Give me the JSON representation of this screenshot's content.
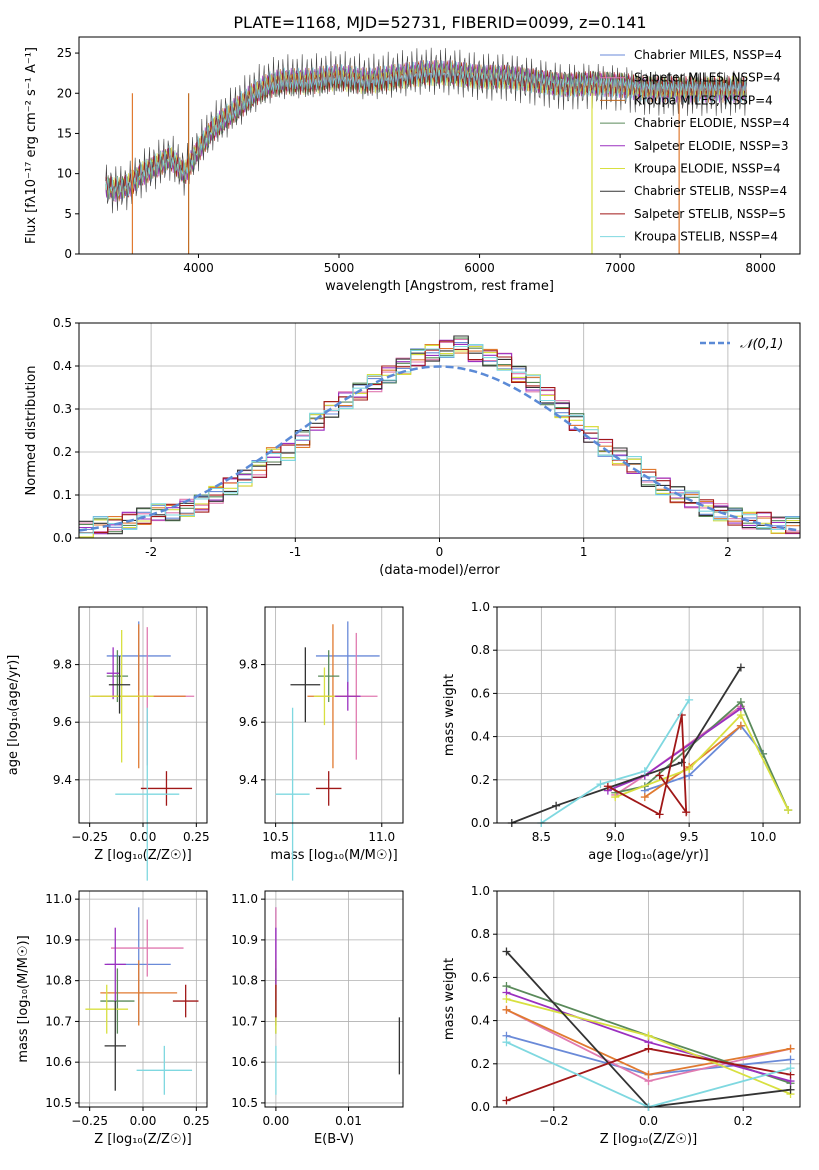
{
  "title": "PLATE=1168, MJD=52731, FIBERID=0099, z=0.141",
  "colors": [
    "#6a5acd",
    "#4a4a4a",
    "#e0902a",
    "#5a8a5a",
    "#9b30c0",
    "#e2e23a",
    "#333333",
    "#a01818",
    "#7fd8e0"
  ],
  "legend_series": [
    {
      "label": "Chabrier MILES, N_SSP=4",
      "color": "#6a8ad8"
    },
    {
      "label": "Salpeter MILES, N_SSP=4",
      "color": "#e07ab0"
    },
    {
      "label": "Kroupa MILES, N_SSP=4",
      "color": "#c06a20"
    },
    {
      "label": "Chabrier ELODIE, N_SSP=4",
      "color": "#5a8a5a"
    },
    {
      "label": "Salpeter ELODIE, N_SSP=3",
      "color": "#9b30c0"
    },
    {
      "label": "Kroupa ELODIE, N_SSP=4",
      "color": "#d8e040"
    },
    {
      "label": "Chabrier STELIB, N_SSP=4",
      "color": "#333333"
    },
    {
      "label": "Salpeter STELIB, N_SSP=5",
      "color": "#a01818"
    },
    {
      "label": "Kroupa STELIB, N_SSP=4",
      "color": "#7fd8e0"
    }
  ],
  "chart_data": [
    {
      "panel": "spectrum",
      "type": "line",
      "xlabel": "wavelength [Angstrom, rest frame]",
      "ylabel": "Flux [fλ10⁻¹⁷ erg cm⁻² s⁻¹ A⁻¹]",
      "xlim": [
        3150,
        8280
      ],
      "ylim": [
        0,
        27
      ],
      "xticks": [
        4000,
        5000,
        6000,
        7000,
        8000
      ],
      "yticks": [
        0,
        5,
        10,
        15,
        20,
        25
      ],
      "x": [
        3340,
        3400,
        3500,
        3600,
        3700,
        3800,
        3900,
        4000,
        4100,
        4200,
        4300,
        4400,
        4500,
        4600,
        4700,
        4800,
        4900,
        5000,
        5200,
        5400,
        5600,
        5800,
        6000,
        6200,
        6400,
        6600,
        6800,
        7000,
        7200,
        7400,
        7600,
        7800,
        7900
      ],
      "y": [
        8.5,
        8.0,
        8.5,
        10.0,
        11.0,
        12.0,
        10.0,
        13.0,
        15.5,
        17.0,
        18.5,
        20.0,
        21.0,
        21.5,
        21.5,
        21.5,
        21.8,
        22.0,
        21.5,
        22.0,
        22.5,
        22.5,
        22.0,
        22.0,
        21.5,
        21.0,
        21.2,
        21.0,
        20.5,
        20.5,
        20.5,
        20.5,
        20.5
      ]
    },
    {
      "panel": "residuals",
      "type": "line",
      "xlabel": "(data-model)/error",
      "ylabel": "Normed distribution",
      "xlim": [
        -2.5,
        2.5
      ],
      "ylim": [
        0,
        0.5
      ],
      "xticks": [
        -2,
        -1,
        0,
        1,
        2
      ],
      "yticks": [
        0.0,
        0.1,
        0.2,
        0.3,
        0.4,
        0.5
      ],
      "legend": "𝒩(0,1)",
      "bins_x": [
        -2.45,
        -2.35,
        -2.25,
        -2.15,
        -2.05,
        -1.95,
        -1.85,
        -1.75,
        -1.65,
        -1.55,
        -1.45,
        -1.35,
        -1.25,
        -1.15,
        -1.05,
        -0.95,
        -0.85,
        -0.75,
        -0.65,
        -0.55,
        -0.45,
        -0.35,
        -0.25,
        -0.15,
        -0.05,
        0.05,
        0.15,
        0.25,
        0.35,
        0.45,
        0.55,
        0.65,
        0.75,
        0.85,
        0.95,
        1.05,
        1.15,
        1.25,
        1.35,
        1.45,
        1.55,
        1.65,
        1.75,
        1.85,
        1.95,
        2.05,
        2.15,
        2.25,
        2.35,
        2.45
      ],
      "hist": [
        0.02,
        0.03,
        0.03,
        0.04,
        0.05,
        0.06,
        0.06,
        0.07,
        0.08,
        0.1,
        0.12,
        0.14,
        0.16,
        0.19,
        0.2,
        0.23,
        0.27,
        0.3,
        0.32,
        0.34,
        0.36,
        0.38,
        0.4,
        0.42,
        0.43,
        0.44,
        0.45,
        0.43,
        0.42,
        0.41,
        0.38,
        0.36,
        0.33,
        0.3,
        0.27,
        0.24,
        0.21,
        0.19,
        0.17,
        0.14,
        0.12,
        0.1,
        0.09,
        0.07,
        0.06,
        0.05,
        0.04,
        0.04,
        0.03,
        0.03
      ]
    },
    {
      "panel": "age_vs_Z",
      "type": "scatter",
      "xlabel": "Z [log₁₀(Z/Z☉)]",
      "ylabel": "age  [log₁₀(age/yr)]",
      "xlim": [
        -0.3,
        0.3
      ],
      "ylim": [
        9.25,
        10.0
      ],
      "xticks": [
        -0.25,
        0.0,
        0.25
      ],
      "yticks": [
        9.4,
        9.6,
        9.8
      ],
      "points": [
        {
          "x": -0.02,
          "y": 9.83,
          "xerr": 0.15,
          "yerr": 0.12
        },
        {
          "x": 0.02,
          "y": 9.69,
          "xerr": 0.22,
          "yerr": 0.24
        },
        {
          "x": -0.02,
          "y": 9.69,
          "xerr": 0.22,
          "yerr": 0.25
        },
        {
          "x": -0.12,
          "y": 9.76,
          "xerr": 0.05,
          "yerr": 0.09
        },
        {
          "x": -0.14,
          "y": 9.77,
          "xerr": 0.03,
          "yerr": 0.09
        },
        {
          "x": -0.1,
          "y": 9.69,
          "xerr": 0.15,
          "yerr": 0.23
        },
        {
          "x": -0.11,
          "y": 9.73,
          "xerr": 0.05,
          "yerr": 0.1
        },
        {
          "x": 0.11,
          "y": 9.37,
          "xerr": 0.12,
          "yerr": 0.06
        },
        {
          "x": 0.02,
          "y": 9.35,
          "xerr": 0.15,
          "yerr": 0.3
        }
      ]
    },
    {
      "panel": "age_vs_mass",
      "type": "scatter",
      "xlabel": "mass [log₁₀(M/M☉)]",
      "xlim": [
        10.45,
        11.1
      ],
      "ylim": [
        9.25,
        10.0
      ],
      "xticks": [
        10.5,
        11.0
      ],
      "yticks": [
        9.4,
        9.6,
        9.8
      ],
      "points": [
        {
          "x": 10.84,
          "y": 9.83,
          "xerr": 0.15,
          "yerr": 0.12
        },
        {
          "x": 10.88,
          "y": 9.69,
          "xerr": 0.1,
          "yerr": 0.22
        },
        {
          "x": 10.77,
          "y": 9.69,
          "xerr": 0.12,
          "yerr": 0.25
        },
        {
          "x": 10.75,
          "y": 9.76,
          "xerr": 0.05,
          "yerr": 0.09
        },
        {
          "x": 10.84,
          "y": 9.69,
          "xerr": 0.06,
          "yerr": 0.05
        },
        {
          "x": 10.73,
          "y": 9.69,
          "xerr": 0.05,
          "yerr": 0.1
        },
        {
          "x": 10.64,
          "y": 9.73,
          "xerr": 0.07,
          "yerr": 0.13
        },
        {
          "x": 10.75,
          "y": 9.37,
          "xerr": 0.06,
          "yerr": 0.06
        },
        {
          "x": 10.58,
          "y": 9.35,
          "xerr": 0.08,
          "yerr": 0.3
        }
      ]
    },
    {
      "panel": "weight_vs_age",
      "type": "line",
      "xlabel": "age  [log₁₀(age/yr)]",
      "ylabel": "mass weight",
      "xlim": [
        8.2,
        10.25
      ],
      "ylim": [
        0,
        1.0
      ],
      "xticks": [
        8.5,
        9.0,
        9.5,
        10.0
      ],
      "yticks": [
        0.0,
        0.2,
        0.4,
        0.6,
        0.8,
        1.0
      ],
      "series": [
        {
          "x": [
            9.2,
            9.5,
            9.85,
            10.0
          ],
          "y": [
            0.15,
            0.22,
            0.45,
            0.32
          ]
        },
        {
          "x": [
            9.0,
            9.2,
            9.85
          ],
          "y": [
            0.13,
            0.22,
            0.54
          ]
        },
        {
          "x": [
            9.2,
            9.5,
            9.85
          ],
          "y": [
            0.12,
            0.26,
            0.45
          ]
        },
        {
          "x": [
            9.0,
            9.2,
            9.85,
            10.0,
            10.17
          ],
          "y": [
            0.14,
            0.17,
            0.56,
            0.32,
            0.06
          ]
        },
        {
          "x": [
            8.95,
            9.2,
            9.85
          ],
          "y": [
            0.15,
            0.22,
            0.53
          ]
        },
        {
          "x": [
            9.0,
            9.5,
            9.85,
            10.17
          ],
          "y": [
            0.12,
            0.25,
            0.5,
            0.06
          ]
        },
        {
          "x": [
            8.3,
            8.6,
            9.45,
            9.85
          ],
          "y": [
            0.0,
            0.08,
            0.28,
            0.72
          ]
        },
        {
          "x": [
            8.95,
            9.3,
            9.45,
            9.48,
            9.3
          ],
          "y": [
            0.17,
            0.04,
            0.5,
            0.05,
            0.22
          ]
        },
        {
          "x": [
            8.5,
            8.9,
            9.2,
            9.5
          ],
          "y": [
            0.0,
            0.18,
            0.24,
            0.57
          ]
        }
      ]
    },
    {
      "panel": "mass_vs_Z",
      "type": "scatter",
      "xlabel": "Z [log₁₀(Z/Z☉)]",
      "ylabel": "mass [log₁₀(M/M☉)]",
      "xlim": [
        -0.3,
        0.3
      ],
      "ylim": [
        10.49,
        11.02
      ],
      "xticks": [
        -0.25,
        0.0,
        0.25
      ],
      "yticks": [
        10.5,
        10.6,
        10.7,
        10.8,
        10.9,
        11.0
      ],
      "points": [
        {
          "x": -0.02,
          "y": 10.84,
          "xerr": 0.15,
          "yerr": 0.14
        },
        {
          "x": 0.02,
          "y": 10.88,
          "xerr": 0.17,
          "yerr": 0.07
        },
        {
          "x": -0.02,
          "y": 10.77,
          "xerr": 0.18,
          "yerr": 0.08
        },
        {
          "x": -0.12,
          "y": 10.75,
          "xerr": 0.08,
          "yerr": 0.08
        },
        {
          "x": -0.13,
          "y": 10.84,
          "xerr": 0.05,
          "yerr": 0.09
        },
        {
          "x": -0.17,
          "y": 10.73,
          "xerr": 0.1,
          "yerr": 0.06
        },
        {
          "x": -0.13,
          "y": 10.64,
          "xerr": 0.05,
          "yerr": 0.11
        },
        {
          "x": 0.2,
          "y": 10.75,
          "xerr": 0.06,
          "yerr": 0.04
        },
        {
          "x": 0.1,
          "y": 10.58,
          "xerr": 0.13,
          "yerr": 0.06
        }
      ]
    },
    {
      "panel": "mass_vs_EBV",
      "type": "scatter",
      "xlabel": "E(B-V)",
      "xlim": [
        -0.0015,
        0.0175
      ],
      "ylim": [
        10.49,
        11.02
      ],
      "xticks": [
        0.0,
        0.01
      ],
      "yticks": [
        10.5,
        10.6,
        10.7,
        10.8,
        10.9,
        11.0
      ],
      "points": [
        {
          "x": 0.0,
          "y": 10.84,
          "yerr": 0.14
        },
        {
          "x": 0.0,
          "y": 10.88,
          "yerr": 0.1
        },
        {
          "x": 0.0,
          "y": 10.77,
          "yerr": 0.08
        },
        {
          "x": 0.0,
          "y": 10.75,
          "yerr": 0.08
        },
        {
          "x": 0.0,
          "y": 10.84,
          "yerr": 0.09
        },
        {
          "x": 0.0,
          "y": 10.73,
          "yerr": 0.06
        },
        {
          "x": 0.017,
          "y": 10.64,
          "yerr": 0.07
        },
        {
          "x": 0.0,
          "y": 10.75,
          "yerr": 0.04
        },
        {
          "x": 0.0,
          "y": 10.58,
          "yerr": 0.06
        }
      ]
    },
    {
      "panel": "weight_vs_Z",
      "type": "line",
      "xlabel": "Z [log₁₀(Z/Z☉)]",
      "ylabel": "mass weight",
      "xlim": [
        -0.32,
        0.32
      ],
      "ylim": [
        0,
        1.0
      ],
      "xticks": [
        -0.2,
        0.0,
        0.2
      ],
      "yticks": [
        0.0,
        0.2,
        0.4,
        0.6,
        0.8,
        1.0
      ],
      "series": [
        {
          "x": [
            -0.3,
            0.0,
            0.3
          ],
          "y": [
            0.33,
            0.15,
            0.22
          ]
        },
        {
          "x": [
            -0.3,
            0.0,
            0.3
          ],
          "y": [
            0.45,
            0.12,
            0.27
          ]
        },
        {
          "x": [
            -0.3,
            0.0,
            0.3
          ],
          "y": [
            0.45,
            0.15,
            0.27
          ]
        },
        {
          "x": [
            -0.3,
            0.0,
            0.3
          ],
          "y": [
            0.56,
            0.33,
            0.11
          ]
        },
        {
          "x": [
            -0.3,
            0.0,
            0.3
          ],
          "y": [
            0.53,
            0.3,
            0.12
          ]
        },
        {
          "x": [
            -0.3,
            0.0,
            0.3
          ],
          "y": [
            0.5,
            0.33,
            0.06
          ]
        },
        {
          "x": [
            -0.3,
            0.0,
            0.3
          ],
          "y": [
            0.72,
            0.0,
            0.08
          ]
        },
        {
          "x": [
            -0.3,
            0.0,
            0.3
          ],
          "y": [
            0.03,
            0.27,
            0.15
          ]
        },
        {
          "x": [
            -0.3,
            0.0,
            0.3
          ],
          "y": [
            0.3,
            0.0,
            0.18
          ]
        }
      ]
    }
  ]
}
